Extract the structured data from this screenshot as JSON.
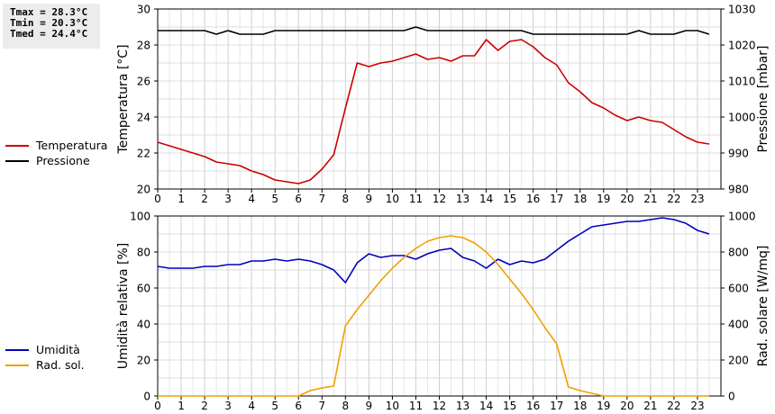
{
  "stats": {
    "tmax": "Tmax = 28.3°C",
    "tmin": "Tmin = 20.3°C",
    "tmed": "Tmed = 24.4°C"
  },
  "chart_data": [
    {
      "type": "line",
      "ylabel": "Temperatura [°C]",
      "y2label": "Pressione [mbar]",
      "xlim": [
        0,
        24
      ],
      "ylim": [
        20,
        30
      ],
      "y2lim": [
        980,
        1030
      ],
      "xticks": [
        "0",
        "1",
        "2",
        "3",
        "4",
        "5",
        "6",
        "7",
        "8",
        "9",
        "10",
        "11",
        "12",
        "13",
        "14",
        "15",
        "16",
        "17",
        "18",
        "19",
        "20",
        "21",
        "22",
        "23"
      ],
      "yticks": [
        "20",
        "22",
        "24",
        "26",
        "28",
        "30"
      ],
      "y2ticks": [
        "980",
        "990",
        "1000",
        "1010",
        "1020",
        "1030"
      ],
      "grid": true,
      "series": [
        {
          "name": "Temperatura",
          "color": "#cc0000",
          "axis": "left",
          "x": [
            0,
            0.5,
            1,
            1.5,
            2,
            2.5,
            3,
            3.5,
            4,
            4.5,
            5,
            5.5,
            6,
            6.5,
            7,
            7.5,
            8,
            8.5,
            9,
            9.5,
            10,
            10.5,
            11,
            11.5,
            12,
            12.5,
            13,
            13.5,
            14,
            14.5,
            15,
            15.5,
            16,
            16.5,
            17,
            17.5,
            18,
            18.5,
            19,
            19.5,
            20,
            20.5,
            21,
            21.5,
            22,
            22.5,
            23,
            23.5
          ],
          "values": [
            22.6,
            22.4,
            22.2,
            22.0,
            21.8,
            21.5,
            21.4,
            21.3,
            21.0,
            20.8,
            20.5,
            20.4,
            20.3,
            20.5,
            21.1,
            21.9,
            24.5,
            27.0,
            26.8,
            27.0,
            27.1,
            27.3,
            27.5,
            27.2,
            27.3,
            27.1,
            27.4,
            27.4,
            28.3,
            27.7,
            28.2,
            28.3,
            27.9,
            27.3,
            26.9,
            25.9,
            25.4,
            24.8,
            24.5,
            24.1,
            23.8,
            24.0,
            23.8,
            23.7,
            23.3,
            22.9,
            22.6,
            22.5
          ]
        },
        {
          "name": "Pressione",
          "color": "#000000",
          "axis": "right",
          "x": [
            0,
            0.5,
            1,
            1.5,
            2,
            2.5,
            3,
            3.5,
            4,
            4.5,
            5,
            5.5,
            6,
            6.5,
            7,
            7.5,
            8,
            8.5,
            9,
            9.5,
            10,
            10.5,
            11,
            11.5,
            12,
            12.5,
            13,
            13.5,
            14,
            14.5,
            15,
            15.5,
            16,
            16.5,
            17,
            17.5,
            18,
            18.5,
            19,
            19.5,
            20,
            20.5,
            21,
            21.5,
            22,
            22.5,
            23,
            23.5
          ],
          "values": [
            1024,
            1024,
            1024,
            1024,
            1024,
            1023,
            1024,
            1023,
            1023,
            1023,
            1024,
            1024,
            1024,
            1024,
            1024,
            1024,
            1024,
            1024,
            1024,
            1024,
            1024,
            1024,
            1025,
            1024,
            1024,
            1024,
            1024,
            1024,
            1024,
            1024,
            1024,
            1024,
            1023,
            1023,
            1023,
            1023,
            1023,
            1023,
            1023,
            1023,
            1023,
            1024,
            1023,
            1023,
            1023,
            1024,
            1024,
            1023
          ]
        }
      ]
    },
    {
      "type": "line",
      "ylabel": "Umidità relativa [%]",
      "y2label": "Rad. solare [W/mq]",
      "xlim": [
        0,
        24
      ],
      "ylim": [
        0,
        100
      ],
      "y2lim": [
        0,
        1000
      ],
      "xticks": [
        "0",
        "1",
        "2",
        "3",
        "4",
        "5",
        "6",
        "7",
        "8",
        "9",
        "10",
        "11",
        "12",
        "13",
        "14",
        "15",
        "16",
        "17",
        "18",
        "19",
        "20",
        "21",
        "22",
        "23"
      ],
      "yticks": [
        "0",
        "20",
        "40",
        "60",
        "80",
        "100"
      ],
      "y2ticks": [
        "0",
        "200",
        "400",
        "600",
        "800",
        "1000"
      ],
      "grid": true,
      "series": [
        {
          "name": "Umidità",
          "color": "#0000bb",
          "axis": "left",
          "x": [
            0,
            0.5,
            1,
            1.5,
            2,
            2.5,
            3,
            3.5,
            4,
            4.5,
            5,
            5.5,
            6,
            6.5,
            7,
            7.5,
            8,
            8.5,
            9,
            9.5,
            10,
            10.5,
            11,
            11.5,
            12,
            12.5,
            13,
            13.5,
            14,
            14.5,
            15,
            15.5,
            16,
            16.5,
            17,
            17.5,
            18,
            18.5,
            19,
            19.5,
            20,
            20.5,
            21,
            21.5,
            22,
            22.5,
            23,
            23.5
          ],
          "values": [
            72,
            71,
            71,
            71,
            72,
            72,
            73,
            73,
            75,
            75,
            76,
            75,
            76,
            75,
            73,
            70,
            63,
            74,
            79,
            77,
            78,
            78,
            76,
            79,
            81,
            82,
            77,
            75,
            71,
            76,
            73,
            75,
            74,
            76,
            81,
            86,
            90,
            94,
            95,
            96,
            97,
            97,
            98,
            99,
            98,
            96,
            92,
            90
          ]
        },
        {
          "name": "Rad. sol.",
          "color": "#f0a000",
          "axis": "right",
          "x": [
            0,
            0.5,
            1,
            1.5,
            2,
            2.5,
            3,
            3.5,
            4,
            4.5,
            5,
            5.5,
            6,
            6.5,
            7,
            7.5,
            8,
            8.5,
            9,
            9.5,
            10,
            10.5,
            11,
            11.5,
            12,
            12.5,
            13,
            13.5,
            14,
            14.5,
            15,
            15.5,
            16,
            16.5,
            17,
            17.5,
            18,
            18.5,
            19,
            19.5,
            20,
            20.5,
            21,
            21.5,
            22,
            22.5,
            23,
            23.5
          ],
          "values": [
            0,
            0,
            0,
            0,
            0,
            0,
            0,
            0,
            0,
            0,
            0,
            0,
            0,
            30,
            45,
            55,
            390,
            480,
            560,
            640,
            710,
            770,
            820,
            860,
            880,
            890,
            880,
            850,
            800,
            730,
            650,
            570,
            480,
            380,
            290,
            50,
            30,
            15,
            0,
            0,
            0,
            0,
            0,
            0,
            0,
            0,
            0,
            0
          ]
        }
      ]
    }
  ]
}
